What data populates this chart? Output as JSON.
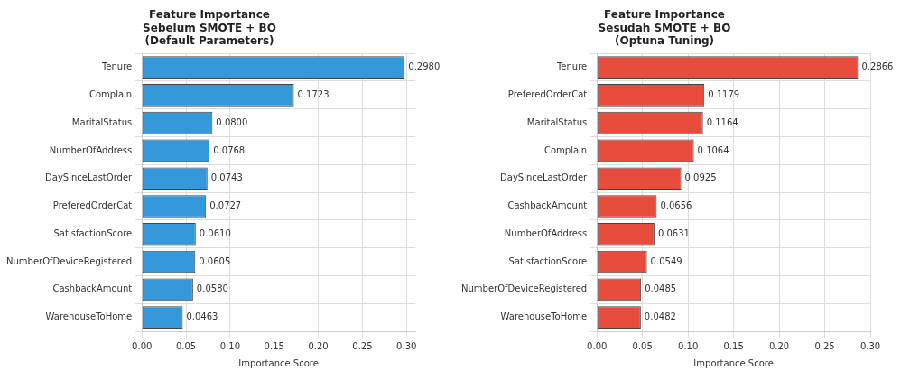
{
  "chart_data": [
    {
      "type": "bar",
      "orientation": "horizontal",
      "title": "Feature Importance\nSebelum SMOTE + BO\n(Default Parameters)",
      "xlabel": "Importance Score",
      "categories": [
        "Tenure",
        "Complain",
        "MaritalStatus",
        "NumberOfAddress",
        "DaySinceLastOrder",
        "PreferedOrderCat",
        "SatisfactionScore",
        "NumberOfDeviceRegistered",
        "CashbackAmount",
        "WarehouseToHome"
      ],
      "values": [
        0.298,
        0.1723,
        0.08,
        0.0768,
        0.0743,
        0.0727,
        0.061,
        0.0605,
        0.058,
        0.0463
      ],
      "value_labels": [
        "0.2980",
        "0.1723",
        "0.0800",
        "0.0768",
        "0.0743",
        "0.0727",
        "0.0610",
        "0.0605",
        "0.0580",
        "0.0463"
      ],
      "color": "#3498db",
      "xlim": [
        0,
        0.31
      ],
      "xticks": [
        {
          "value": 0,
          "label": "0.00"
        },
        {
          "value": 0.05,
          "label": "0.05"
        },
        {
          "value": 0.1,
          "label": "0.10"
        },
        {
          "value": 0.15,
          "label": "0.15"
        },
        {
          "value": 0.2,
          "label": "0.20"
        },
        {
          "value": 0.25,
          "label": "0.25"
        },
        {
          "value": 0.3,
          "label": "0.30"
        }
      ],
      "grid": true
    },
    {
      "type": "bar",
      "orientation": "horizontal",
      "title": "Feature Importance\nSesudah SMOTE + BO\n(Optuna Tuning)",
      "xlabel": "Importance Score",
      "categories": [
        "Tenure",
        "PreferedOrderCat",
        "MaritalStatus",
        "Complain",
        "DaySinceLastOrder",
        "CashbackAmount",
        "NumberOfAddress",
        "SatisfactionScore",
        "NumberOfDeviceRegistered",
        "WarehouseToHome"
      ],
      "values": [
        0.2866,
        0.1179,
        0.1164,
        0.1064,
        0.0925,
        0.0656,
        0.0631,
        0.0549,
        0.0485,
        0.0482
      ],
      "value_labels": [
        "0.2866",
        "0.1179",
        "0.1164",
        "0.1064",
        "0.0925",
        "0.0656",
        "0.0631",
        "0.0549",
        "0.0485",
        "0.0482"
      ],
      "color": "#e74c3c",
      "xlim": [
        0,
        0.3
      ],
      "xticks": [
        {
          "value": 0,
          "label": "0.00"
        },
        {
          "value": 0.05,
          "label": "0.05"
        },
        {
          "value": 0.1,
          "label": "0.10"
        },
        {
          "value": 0.15,
          "label": "0.15"
        },
        {
          "value": 0.2,
          "label": "0.20"
        },
        {
          "value": 0.25,
          "label": "0.25"
        },
        {
          "value": 0.3,
          "label": "0.30"
        }
      ],
      "grid": true
    }
  ]
}
